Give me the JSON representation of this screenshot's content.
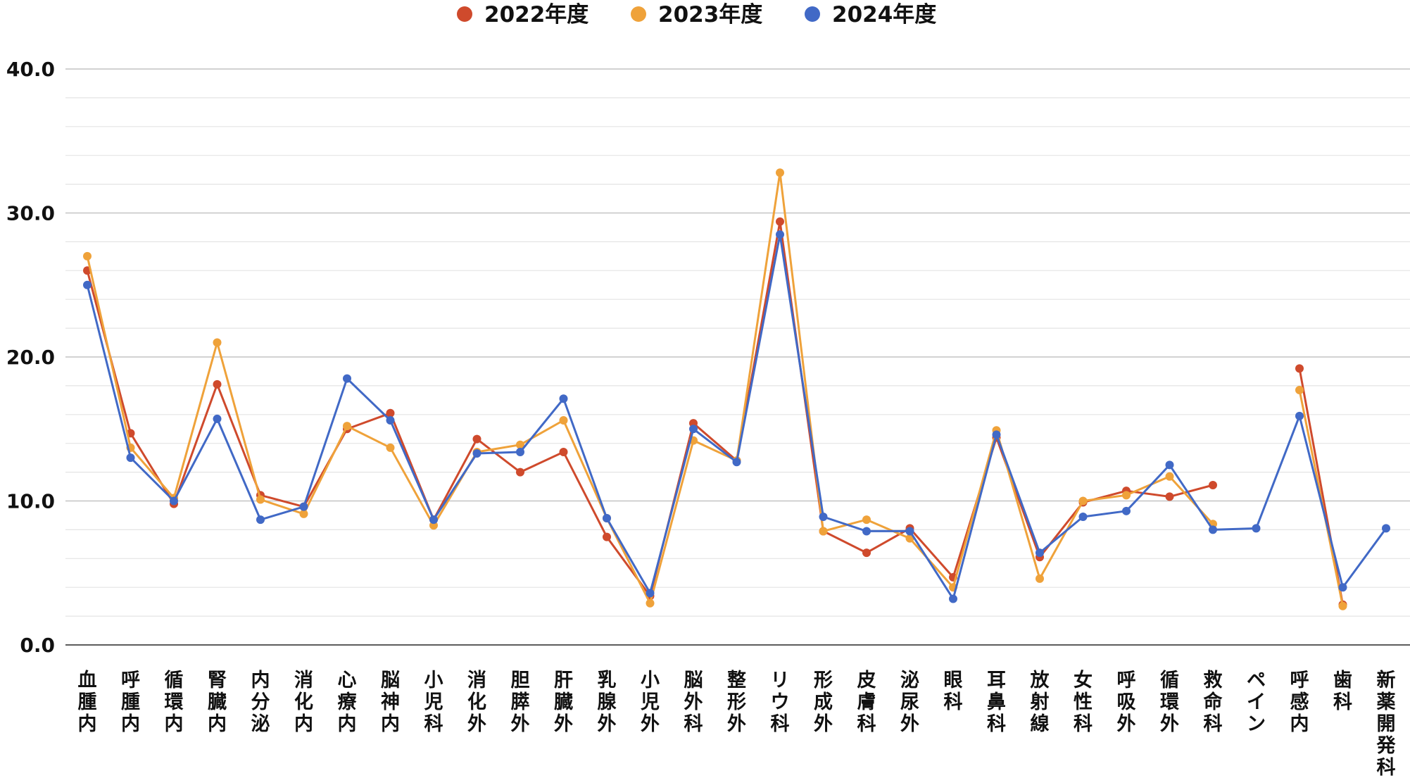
{
  "chart_data": {
    "type": "line",
    "title": "",
    "xlabel": "",
    "ylabel": "",
    "ylim": [
      0,
      40
    ],
    "yticks": [
      "0.0",
      "10.0",
      "20.0",
      "30.0",
      "40.0"
    ],
    "grid": true,
    "legend_position": "top",
    "categories": [
      "血腫内",
      "呼腫内",
      "循環内",
      "腎臓内",
      "内分泌",
      "消化内",
      "心療内",
      "脳神内",
      "小児科",
      "消化外",
      "胆膵外",
      "肝臓外",
      "乳腺外",
      "小児外",
      "脳外科",
      "整形外",
      "リウ科",
      "形成外",
      "皮膚科",
      "泌尿外",
      "眼科",
      "耳鼻科",
      "放射線",
      "女性科",
      "呼吸外",
      "循環外",
      "救命科",
      "ペイン",
      "呼感内",
      "歯科",
      "新薬開発科"
    ],
    "series": [
      {
        "name": "2022年度",
        "color": "#cf4a2c",
        "values": [
          26.0,
          14.7,
          9.8,
          18.1,
          10.4,
          9.6,
          15.0,
          16.1,
          8.7,
          14.3,
          12.0,
          13.4,
          7.5,
          3.4,
          15.4,
          12.8,
          29.4,
          7.9,
          6.4,
          8.1,
          4.7,
          14.4,
          6.1,
          9.9,
          10.7,
          10.3,
          11.1,
          null,
          19.2,
          2.8,
          null
        ]
      },
      {
        "name": "2023年度",
        "color": "#efa23a",
        "values": [
          27.0,
          13.7,
          10.2,
          21.0,
          10.1,
          9.1,
          15.2,
          13.7,
          8.3,
          13.4,
          13.9,
          15.6,
          8.8,
          2.9,
          14.2,
          12.8,
          32.8,
          7.9,
          8.7,
          7.4,
          4.0,
          14.9,
          4.6,
          10.0,
          10.4,
          11.7,
          8.4,
          null,
          17.7,
          2.7,
          null
        ]
      },
      {
        "name": "2024年度",
        "color": "#4169c6",
        "values": [
          25.0,
          13.0,
          10.0,
          15.7,
          8.7,
          9.6,
          18.5,
          15.6,
          8.7,
          13.3,
          13.4,
          17.1,
          8.8,
          3.6,
          15.0,
          12.7,
          28.5,
          8.9,
          7.9,
          7.9,
          3.2,
          14.6,
          6.4,
          8.9,
          9.3,
          12.5,
          8.0,
          8.1,
          15.9,
          4.0,
          8.1
        ]
      }
    ]
  }
}
